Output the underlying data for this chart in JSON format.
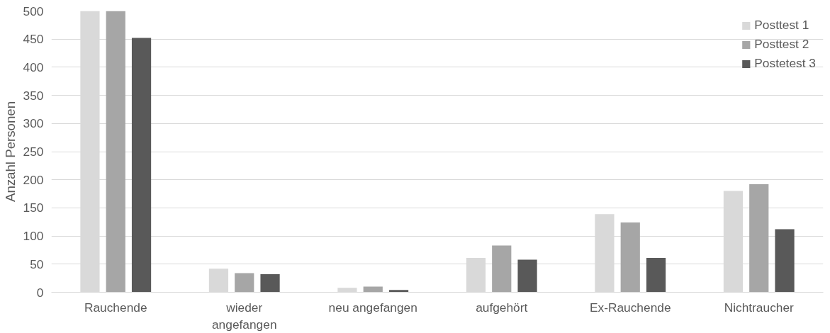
{
  "chart_data": {
    "type": "bar",
    "ylabel": "Anzahl Personen",
    "categories": [
      "Rauchende",
      "wieder\nangefangen",
      "neu angefangen",
      "aufgehört",
      "Ex-Rauchende",
      "Nichtraucher"
    ],
    "series": [
      {
        "name": "Posttest 1",
        "color": "#d9d9d9",
        "values": [
          500,
          42,
          8,
          61,
          139,
          180
        ]
      },
      {
        "name": "Posttest 2",
        "color": "#a6a6a6",
        "values": [
          500,
          34,
          10,
          83,
          124,
          192
        ]
      },
      {
        "name": "Postetest 3",
        "color": "#595959",
        "values": [
          452,
          32,
          4,
          58,
          61,
          112
        ]
      }
    ],
    "ylim": [
      0,
      500
    ],
    "yticks": [
      0,
      50,
      100,
      150,
      200,
      250,
      300,
      350,
      400,
      450,
      500
    ],
    "grid": "y",
    "legend": "top right"
  }
}
